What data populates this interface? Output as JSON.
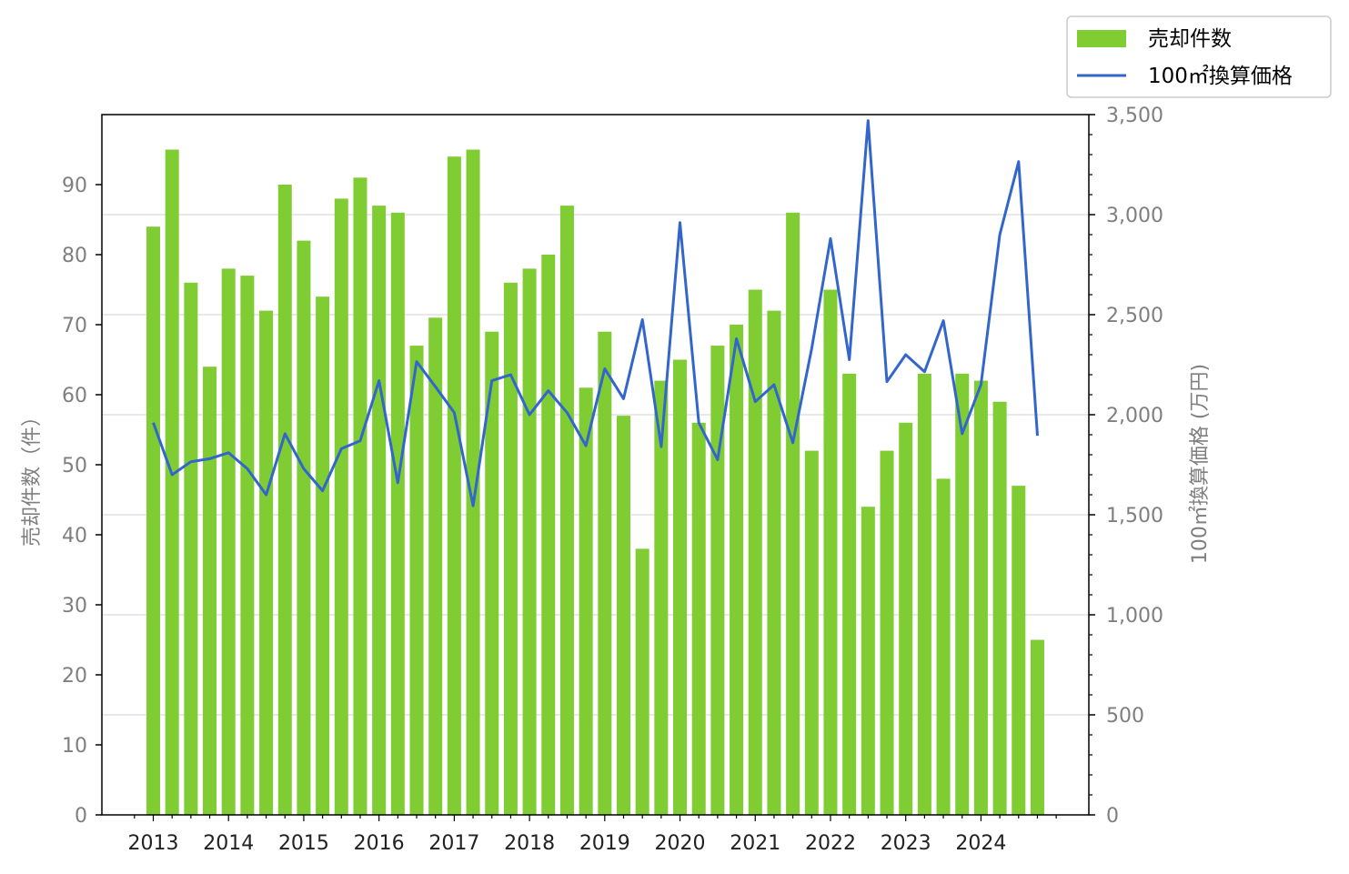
{
  "chart_data": {
    "type": "bar",
    "y_left_label": "売却件数（件）",
    "y_right_label": "100㎡換算価格 (万円)",
    "y_left_lim": [
      0,
      100
    ],
    "y_left_ticks": [
      "0",
      "10",
      "20",
      "30",
      "40",
      "50",
      "60",
      "70",
      "80",
      "90"
    ],
    "y_right_lim": [
      0,
      3500
    ],
    "y_right_ticks": [
      "0",
      "500",
      "1,000",
      "1,500",
      "2,000",
      "2,500",
      "3,000",
      "3,500"
    ],
    "year_labels": [
      "2013",
      "2014",
      "2015",
      "2016",
      "2017",
      "2018",
      "2019",
      "2020",
      "2021",
      "2022",
      "2023",
      "2024"
    ],
    "grid": "horizontal (right axis)",
    "legend_placement": "top-right outside",
    "series": [
      {
        "name": "売却件数",
        "type": "bar",
        "axis": "left",
        "color": "#7fcc33",
        "values": [
          84,
          95,
          76,
          64,
          78,
          77,
          72,
          90,
          82,
          74,
          88,
          91,
          87,
          86,
          67,
          71,
          94,
          95,
          69,
          76,
          78,
          80,
          87,
          61,
          69,
          57,
          38,
          62,
          65,
          56,
          67,
          70,
          75,
          72,
          86,
          52,
          75,
          63,
          44,
          52,
          56,
          63,
          48,
          63,
          62,
          59,
          47,
          25
        ]
      },
      {
        "name": "100㎡換算価格",
        "type": "line",
        "axis": "right",
        "color": "#3366cc",
        "values": [
          1960,
          1700,
          1765,
          1780,
          1810,
          1730,
          1600,
          1905,
          1730,
          1620,
          1830,
          1870,
          2170,
          1660,
          2265,
          2140,
          2010,
          1545,
          2170,
          2200,
          2000,
          2120,
          2010,
          1845,
          2230,
          2080,
          2475,
          1840,
          2960,
          1960,
          1775,
          2380,
          2065,
          2150,
          1860,
          2330,
          2880,
          2275,
          3470,
          2165,
          2300,
          2215,
          2470,
          1905,
          2150,
          2900,
          3265,
          1895
        ]
      }
    ]
  }
}
